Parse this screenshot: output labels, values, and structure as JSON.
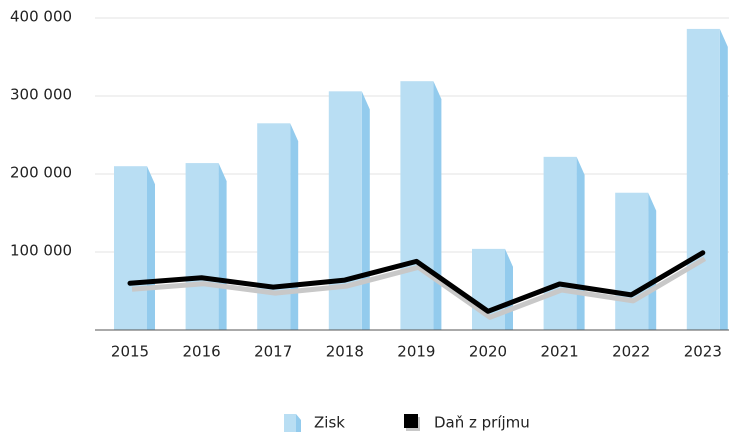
{
  "chart_data": {
    "type": "bar-line",
    "categories": [
      "2015",
      "2016",
      "2017",
      "2018",
      "2019",
      "2020",
      "2021",
      "2022",
      "2023"
    ],
    "series": [
      {
        "name": "Zisk",
        "type": "bar",
        "color": "#b9def3",
        "values": [
          210000,
          214000,
          265000,
          306000,
          319000,
          104000,
          222000,
          176000,
          386000
        ]
      },
      {
        "name": "Daň z príjmu",
        "type": "line",
        "color": "#000000",
        "values": [
          60000,
          67000,
          55000,
          64000,
          88000,
          24000,
          59000,
          45000,
          99000
        ]
      }
    ],
    "ylim": [
      0,
      400000
    ],
    "yticks": [
      {
        "value": 100000,
        "label": "100 000"
      },
      {
        "value": 200000,
        "label": "200 000"
      },
      {
        "value": 300000,
        "label": "300 000"
      },
      {
        "value": 400000,
        "label": "400 000"
      }
    ],
    "grid": true,
    "legend": "bottom"
  }
}
